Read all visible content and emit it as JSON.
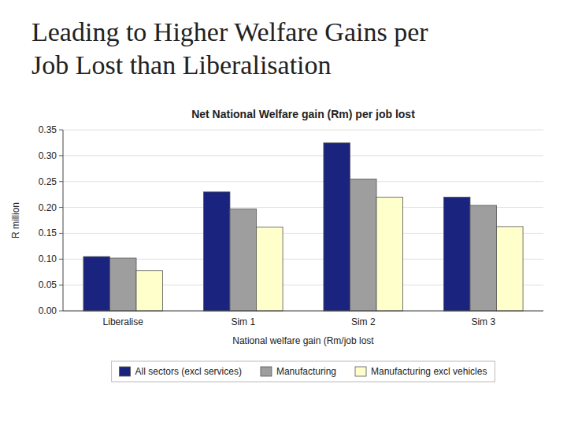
{
  "chart_data": {
    "type": "bar",
    "title": "Leading to Higher Welfare Gains per\nJob Lost than Liberalisation",
    "subtitle": "Net National Welfare gain (Rm) per job lost",
    "x_label": "National welfare gain (Rm/job lost",
    "y_label": "R million",
    "categories": [
      "Liberalise",
      "Sim 1",
      "Sim 2",
      "Sim 3"
    ],
    "series": [
      {
        "name": "All sectors (excl services)",
        "color": "#1a237e",
        "values": [
          0.105,
          0.23,
          0.325,
          0.22
        ]
      },
      {
        "name": "Manufacturing",
        "color": "#9e9e9e",
        "values": [
          0.102,
          0.197,
          0.255,
          0.204
        ]
      },
      {
        "name": "Manufacturing excl vehicles",
        "color": "#ffffcc",
        "values": [
          0.078,
          0.162,
          0.22,
          0.163
        ]
      }
    ],
    "ylim": [
      0.0,
      0.35
    ],
    "yticks": [
      {
        "value": 0.0,
        "label": "0.00"
      },
      0.05,
      {
        "value": 0.1,
        "label": "0.10"
      },
      0.15,
      {
        "value": 0.2,
        "label": "0.20"
      },
      0.25,
      {
        "value": 0.3,
        "label": "0.30"
      },
      0.35
    ],
    "grid": true,
    "legend": "bottom"
  }
}
